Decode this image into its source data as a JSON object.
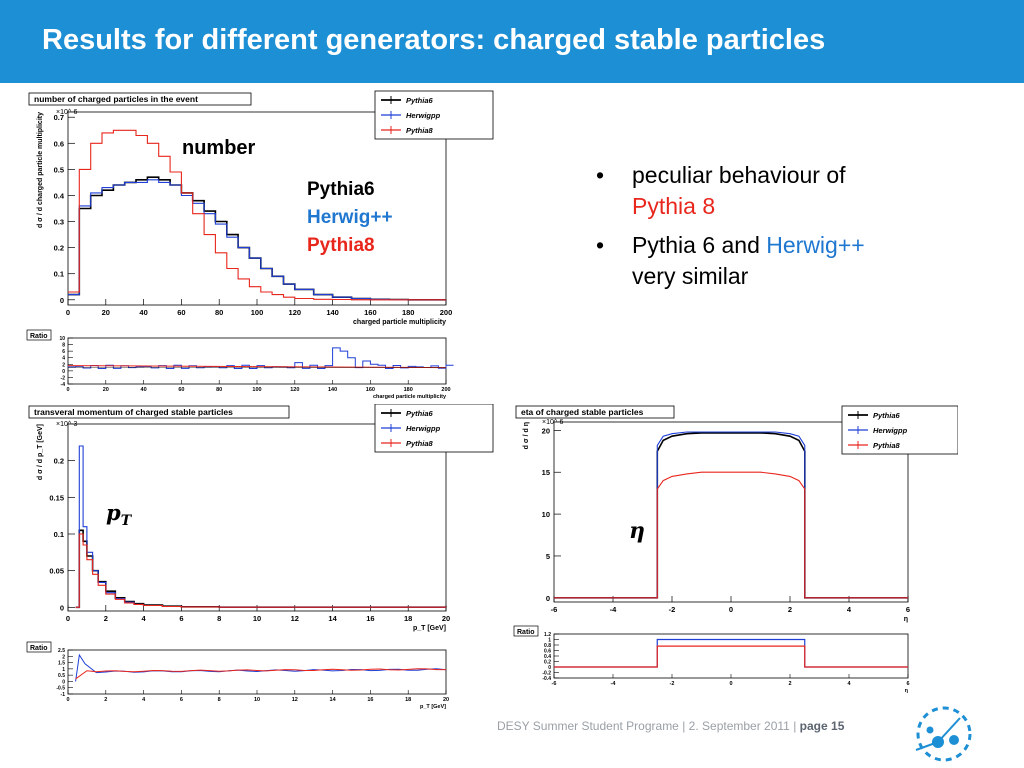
{
  "slide": {
    "title": "Results for different generators: charged stable particles",
    "annotations": {
      "number": "number",
      "gen_pythia6": "Pythia6",
      "gen_herwig": "Herwig++",
      "gen_pythia8": "Pythia8",
      "pt": "p_T",
      "eta": "η"
    },
    "bullets": {
      "b1_text": "peculiar behaviour of ",
      "b1_highlight": "Pythia 8",
      "b2_text1": "Pythia 6 and ",
      "b2_highlight": "Herwig++",
      "b2_text2": " very similar"
    },
    "footer": {
      "program": "DESY Summer Student Programe",
      "sep": "|",
      "date": "2. September 2011",
      "page": "page 15"
    },
    "colors": {
      "header_bg": "#1d8fd4",
      "pythia6": "#000000",
      "herwigpp": "#1f3fd6",
      "pythia8": "#e8261c",
      "herwig_text": "#1f77d0"
    }
  },
  "chart_data": [
    {
      "type": "line",
      "title": "number of charged particles in the event",
      "xlabel": "charged particle multiplicity",
      "ylabel": "d σ / d charged particle multiplicity",
      "exponent": "×10^-6",
      "xlim": [
        0,
        200
      ],
      "ylim": [
        -0.02,
        0.72
      ],
      "xticks": [
        "0",
        "20",
        "40",
        "60",
        "80",
        "100",
        "120",
        "140",
        "160",
        "180",
        "200"
      ],
      "yticks": [
        "0",
        "0.1",
        "0.2",
        "0.3",
        "0.4",
        "0.5",
        "0.6",
        "0.7"
      ],
      "legend": [
        "Pythia6",
        "Herwigpp",
        "Pythia8"
      ],
      "x": [
        0,
        6,
        12,
        18,
        24,
        30,
        36,
        42,
        48,
        54,
        60,
        66,
        72,
        78,
        84,
        90,
        96,
        102,
        108,
        114,
        120,
        130,
        140,
        150,
        160,
        170,
        180,
        200
      ],
      "series": [
        {
          "name": "Pythia6",
          "values": [
            0.02,
            0.35,
            0.4,
            0.42,
            0.44,
            0.45,
            0.46,
            0.47,
            0.46,
            0.44,
            0.41,
            0.38,
            0.34,
            0.3,
            0.25,
            0.2,
            0.16,
            0.12,
            0.09,
            0.06,
            0.04,
            0.02,
            0.01,
            0.005,
            0.002,
            0.001,
            0.0,
            0.0
          ]
        },
        {
          "name": "Herwigpp",
          "values": [
            0.02,
            0.36,
            0.41,
            0.43,
            0.44,
            0.45,
            0.45,
            0.46,
            0.45,
            0.44,
            0.4,
            0.37,
            0.33,
            0.29,
            0.24,
            0.2,
            0.16,
            0.12,
            0.09,
            0.06,
            0.04,
            0.02,
            0.01,
            0.005,
            0.002,
            0.001,
            0.0,
            0.0
          ]
        },
        {
          "name": "Pythia8",
          "values": [
            0.03,
            0.5,
            0.6,
            0.64,
            0.65,
            0.65,
            0.63,
            0.6,
            0.55,
            0.49,
            0.41,
            0.33,
            0.25,
            0.18,
            0.12,
            0.08,
            0.05,
            0.03,
            0.02,
            0.01,
            0.005,
            0.002,
            0.001,
            0.0,
            0.0,
            0.0,
            0.0,
            0.0
          ]
        }
      ],
      "ratio": {
        "label": "Ratio",
        "yticks": [
          "-4",
          "-2",
          "0",
          "2",
          "4",
          "6",
          "8",
          "10"
        ],
        "ylim": [
          -4,
          10
        ],
        "xlabel": "charged particle multiplicity",
        "herwig_spikes": [
          {
            "x": 140,
            "y": 7
          },
          {
            "x": 145,
            "y": 6
          },
          {
            "x": 148,
            "y": 4
          },
          {
            "x": 155,
            "y": 3
          },
          {
            "x": 120,
            "y": 2.5
          },
          {
            "x": 160,
            "y": 2
          }
        ]
      }
    },
    {
      "type": "line",
      "title": "transveral momentum of charged stable particles",
      "xlabel": "p_T [GeV]",
      "ylabel": "d σ / d p_T [GeV]",
      "exponent": "×10^-3",
      "xlim": [
        0,
        20
      ],
      "ylim": [
        -0.005,
        0.25
      ],
      "xticks": [
        "0",
        "2",
        "4",
        "6",
        "8",
        "10",
        "12",
        "14",
        "16",
        "18",
        "20"
      ],
      "yticks": [
        "0",
        "0.05",
        "0.1",
        "0.15",
        "0.2"
      ],
      "legend": [
        "Pythia6",
        "Herwigpp",
        "Pythia8"
      ],
      "x": [
        0.4,
        0.6,
        0.8,
        1.0,
        1.3,
        1.6,
        2.0,
        2.5,
        3.0,
        3.5,
        4.0,
        5.0,
        6.0,
        8.0,
        20.0
      ],
      "series": [
        {
          "name": "Pythia6",
          "values": [
            0,
            0.105,
            0.09,
            0.07,
            0.05,
            0.035,
            0.022,
            0.013,
            0.008,
            0.005,
            0.003,
            0.0015,
            0.0007,
            0.0002,
            0
          ]
        },
        {
          "name": "Herwigpp",
          "values": [
            0,
            0.22,
            0.11,
            0.075,
            0.05,
            0.034,
            0.02,
            0.012,
            0.007,
            0.004,
            0.0025,
            0.0012,
            0.0006,
            0.0002,
            0
          ]
        },
        {
          "name": "Pythia8",
          "values": [
            0,
            0.1,
            0.085,
            0.065,
            0.045,
            0.03,
            0.018,
            0.011,
            0.006,
            0.004,
            0.0025,
            0.0012,
            0.0006,
            0.0002,
            0
          ]
        }
      ],
      "ratio": {
        "label": "Ratio",
        "yticks": [
          "-1",
          "-0.5",
          "0",
          "0.5",
          "1",
          "1.5",
          "2",
          "2.5"
        ],
        "ylim": [
          -1,
          2.5
        ],
        "xlabel": "p_T [GeV]"
      }
    },
    {
      "type": "line",
      "title": "eta of charged stable particles",
      "xlabel": "η",
      "ylabel": "d σ / d η",
      "exponent": "×10^-6",
      "xlim": [
        -6,
        6
      ],
      "ylim": [
        -0.5,
        21
      ],
      "xticks": [
        "-6",
        "-4",
        "-2",
        "0",
        "2",
        "4",
        "6"
      ],
      "yticks": [
        "0",
        "5",
        "10",
        "15",
        "20"
      ],
      "legend": [
        "Pythia6",
        "Herwigpp",
        "Pythia8"
      ],
      "x": [
        -6,
        -2.5,
        -2.5,
        -2.3,
        -2.0,
        -1.5,
        -1.0,
        0,
        1.0,
        1.5,
        2.0,
        2.3,
        2.5,
        2.5,
        6
      ],
      "series": [
        {
          "name": "Pythia6",
          "values": [
            0,
            0,
            17.5,
            18.8,
            19.3,
            19.6,
            19.7,
            19.7,
            19.7,
            19.6,
            19.3,
            18.8,
            17.5,
            0,
            0
          ]
        },
        {
          "name": "Herwigpp",
          "values": [
            0,
            0,
            18.2,
            19.3,
            19.6,
            19.8,
            19.8,
            19.8,
            19.8,
            19.8,
            19.6,
            19.3,
            18.2,
            0,
            0
          ]
        },
        {
          "name": "Pythia8",
          "values": [
            0,
            0,
            13.0,
            14.0,
            14.5,
            14.8,
            15.0,
            15.0,
            15.0,
            14.8,
            14.5,
            14.0,
            13.0,
            0,
            0
          ]
        }
      ],
      "ratio": {
        "label": "Ratio",
        "yticks": [
          "-0.4",
          "-0.2",
          "0",
          "0.2",
          "0.4",
          "0.6",
          "0.8",
          "1",
          "1.2"
        ],
        "ylim": [
          -0.4,
          1.2
        ],
        "herwig_level": 1.0,
        "pythia8_level": 0.76,
        "xlabel": "η"
      }
    }
  ]
}
